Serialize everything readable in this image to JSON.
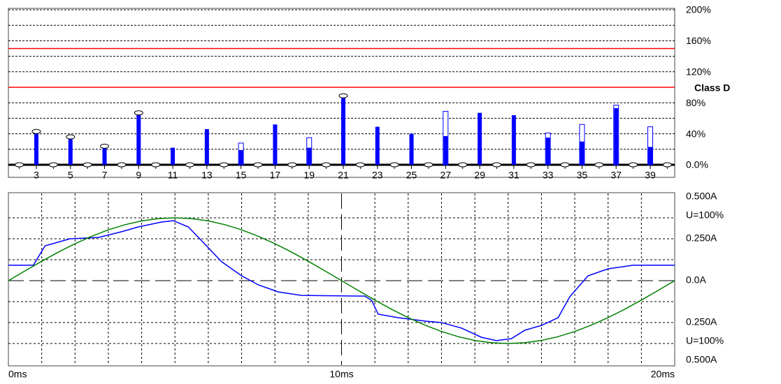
{
  "chart_data": [
    {
      "type": "bar",
      "categories": [
        null,
        "3",
        null,
        "5",
        null,
        "7",
        null,
        "9",
        null,
        "11",
        null,
        "13",
        null,
        "15",
        null,
        "17",
        null,
        "19",
        null,
        "21",
        null,
        "23",
        null,
        "25",
        null,
        "27",
        null,
        "29",
        null,
        "31",
        null,
        "33",
        null,
        "35",
        null,
        "37",
        null,
        "39",
        null
      ],
      "series": [
        {
          "color": "#0000ff",
          "style": "filled",
          "values": [
            0,
            41,
            0,
            35,
            0,
            23,
            0,
            66,
            0,
            22,
            0,
            46,
            0,
            19,
            0,
            52,
            0,
            22,
            0,
            88,
            0,
            49,
            0,
            40,
            0,
            37,
            0,
            67,
            0,
            64,
            0,
            35,
            0,
            30,
            0,
            73,
            0,
            23,
            0
          ]
        },
        {
          "color": "#0000ff",
          "style": "outline",
          "values": [
            0,
            43,
            0,
            36,
            0,
            24,
            0,
            67,
            0,
            22,
            0,
            47,
            0,
            28,
            0,
            53,
            0,
            35,
            0,
            89,
            0,
            50,
            0,
            41,
            0,
            69,
            0,
            68,
            0,
            65,
            0,
            41,
            0,
            52,
            0,
            77,
            0,
            49,
            0
          ]
        }
      ],
      "ylim": [
        0,
        200
      ],
      "yticks": [
        {
          "value": 200,
          "label": "200%"
        },
        {
          "value": 160,
          "label": "160%"
        },
        {
          "value": 120,
          "label": "120%"
        },
        {
          "value": 80,
          "label": "80%"
        },
        {
          "value": 40,
          "label": "40%"
        },
        {
          "value": 0,
          "label": "0.0%"
        }
      ],
      "yminor": [
        180,
        140,
        100,
        60,
        20
      ],
      "grid": true,
      "reference_lines": [
        {
          "value": 150,
          "color": "#ff0000"
        },
        {
          "value": 100,
          "label": "Class D",
          "color": "#ff0000"
        }
      ]
    },
    {
      "type": "line",
      "xlim": [
        0,
        20
      ],
      "xticks": [
        {
          "value": 0,
          "label": "0ms"
        },
        {
          "value": 10,
          "label": "10ms"
        },
        {
          "value": 20,
          "label": "20ms"
        }
      ],
      "xminor": [
        1,
        2,
        3,
        4,
        5,
        6,
        7,
        8,
        9,
        11,
        12,
        13,
        14,
        15,
        16,
        17,
        18,
        19
      ],
      "ylim": [
        -0.5,
        0.5
      ],
      "yticks": [
        {
          "value": 0.5,
          "label": "0.500A"
        },
        {
          "value": 0.25,
          "label": "0.250A"
        },
        {
          "value": 0,
          "label": "0.0A"
        },
        {
          "value": -0.25,
          "label": "0.250A"
        },
        {
          "value": -0.5,
          "label": "0.500A"
        }
      ],
      "yminor": [
        0.375,
        0.125,
        -0.125,
        -0.375
      ],
      "y2lim": [
        -133.33,
        133.33
      ],
      "y2ticks": [
        {
          "value": 100,
          "label": "U=100%"
        },
        {
          "value": -100,
          "label": "U=100%"
        }
      ],
      "grid": true,
      "series": [
        {
          "color": "#0000ff",
          "x": [
            0,
            0.75,
            1.1,
            1.85,
            2.7,
            3.4,
            3.9,
            4.6,
            4.95,
            5.4,
            5.8,
            6.4,
            7.0,
            7.5,
            8.1,
            8.8,
            10.7,
            10.9,
            11.1,
            11.7,
            12.55,
            13,
            13.6,
            14.2,
            14.65,
            15.1,
            15.5,
            16.0,
            16.5,
            16.85,
            17.4,
            18.0,
            18.75,
            20
          ],
          "values": [
            0.092,
            0.092,
            0.208,
            0.25,
            0.258,
            0.292,
            0.321,
            0.35,
            0.358,
            0.321,
            0.238,
            0.113,
            0.029,
            -0.025,
            -0.067,
            -0.088,
            -0.092,
            -0.117,
            -0.2,
            -0.221,
            -0.242,
            -0.25,
            -0.283,
            -0.338,
            -0.358,
            -0.346,
            -0.296,
            -0.267,
            -0.221,
            -0.096,
            0.029,
            0.071,
            0.092,
            0.092
          ]
        },
        {
          "color": "#008000",
          "axis": "y2",
          "x": [
            0,
            0.5,
            1,
            1.5,
            2,
            2.5,
            3,
            3.5,
            4,
            4.5,
            5,
            5.5,
            6,
            6.5,
            7,
            7.5,
            8,
            8.5,
            9,
            9.5,
            10,
            10.5,
            11,
            11.5,
            12,
            12.5,
            13,
            13.5,
            14,
            14.5,
            15,
            15.5,
            16,
            16.5,
            17,
            17.5,
            18,
            18.5,
            19,
            19.5,
            20
          ],
          "values": [
            0,
            15.6,
            30.9,
            45.4,
            58.8,
            70.7,
            80.9,
            89.1,
            95.1,
            98.8,
            100,
            98.8,
            95.1,
            89.1,
            80.9,
            70.7,
            58.8,
            45.4,
            30.9,
            15.6,
            0,
            -15.6,
            -30.9,
            -45.4,
            -58.8,
            -70.7,
            -80.9,
            -89.1,
            -95.1,
            -98.8,
            -100,
            -98.8,
            -95.1,
            -89.1,
            -80.9,
            -70.7,
            -58.8,
            -45.4,
            -30.9,
            -15.6,
            0
          ]
        }
      ]
    }
  ]
}
